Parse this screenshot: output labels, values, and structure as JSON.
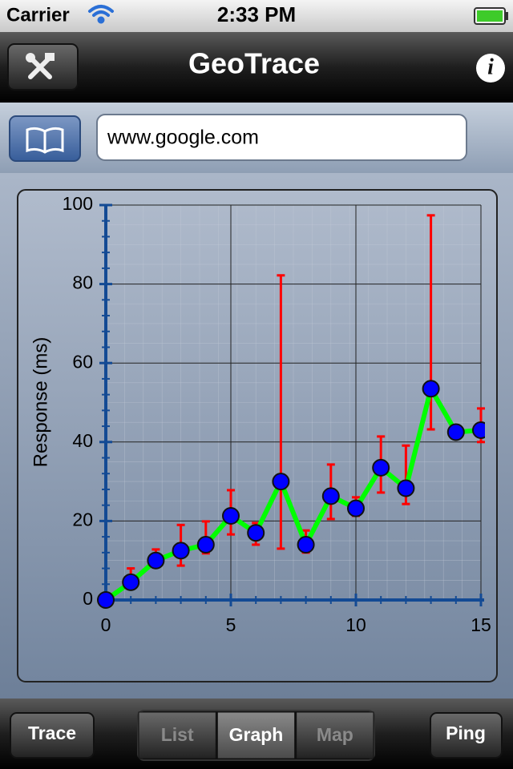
{
  "status_bar": {
    "carrier": "Carrier",
    "time": "2:33 PM"
  },
  "nav_bar": {
    "title": "GeoTrace"
  },
  "search_bar": {
    "url": "www.google.com"
  },
  "chart_data": {
    "type": "line",
    "y_label": "Response (ms)",
    "x": [
      0,
      1,
      2,
      3,
      4,
      5,
      6,
      7,
      8,
      9,
      10,
      11,
      12,
      13,
      14,
      15
    ],
    "series": [
      {
        "color": "#00ff00",
        "marker_color": "#0000ff",
        "error_color": "#ff0000",
        "values": [
          0,
          4.5,
          10,
          12.5,
          14,
          21.3,
          17,
          30,
          14,
          26.3,
          23.2,
          33.5,
          28.3,
          53.5,
          42.5,
          43
        ],
        "error_low": [
          null,
          3,
          9,
          8.7,
          11.8,
          16.6,
          14,
          13,
          12,
          20.5,
          21.3,
          27.2,
          24.3,
          43.2,
          42,
          40
        ],
        "error_high": [
          null,
          8,
          12.8,
          19,
          19.9,
          27.8,
          19.5,
          82.2,
          17.6,
          34.3,
          26,
          41.4,
          39.1,
          97.4,
          43.5,
          48.5
        ]
      }
    ],
    "xlim": [
      0,
      15
    ],
    "ylim": [
      0,
      100
    ],
    "xticks": [
      0,
      5,
      10,
      15
    ],
    "yticks": [
      0,
      20,
      40,
      60,
      80,
      100
    ],
    "x_minor_ticks": [
      1,
      2,
      3,
      4,
      6,
      7,
      8,
      9,
      11,
      12,
      13,
      14
    ],
    "y_minor_ticks": [
      4,
      8,
      12,
      16,
      24,
      28,
      32,
      36,
      44,
      48,
      52,
      56,
      64,
      68,
      72,
      76,
      84,
      88,
      92,
      96
    ],
    "grid": true
  },
  "toolbar": {
    "left": "Trace",
    "segments": [
      "List",
      "Graph",
      "Map"
    ],
    "selected": 1,
    "right": "Ping"
  }
}
